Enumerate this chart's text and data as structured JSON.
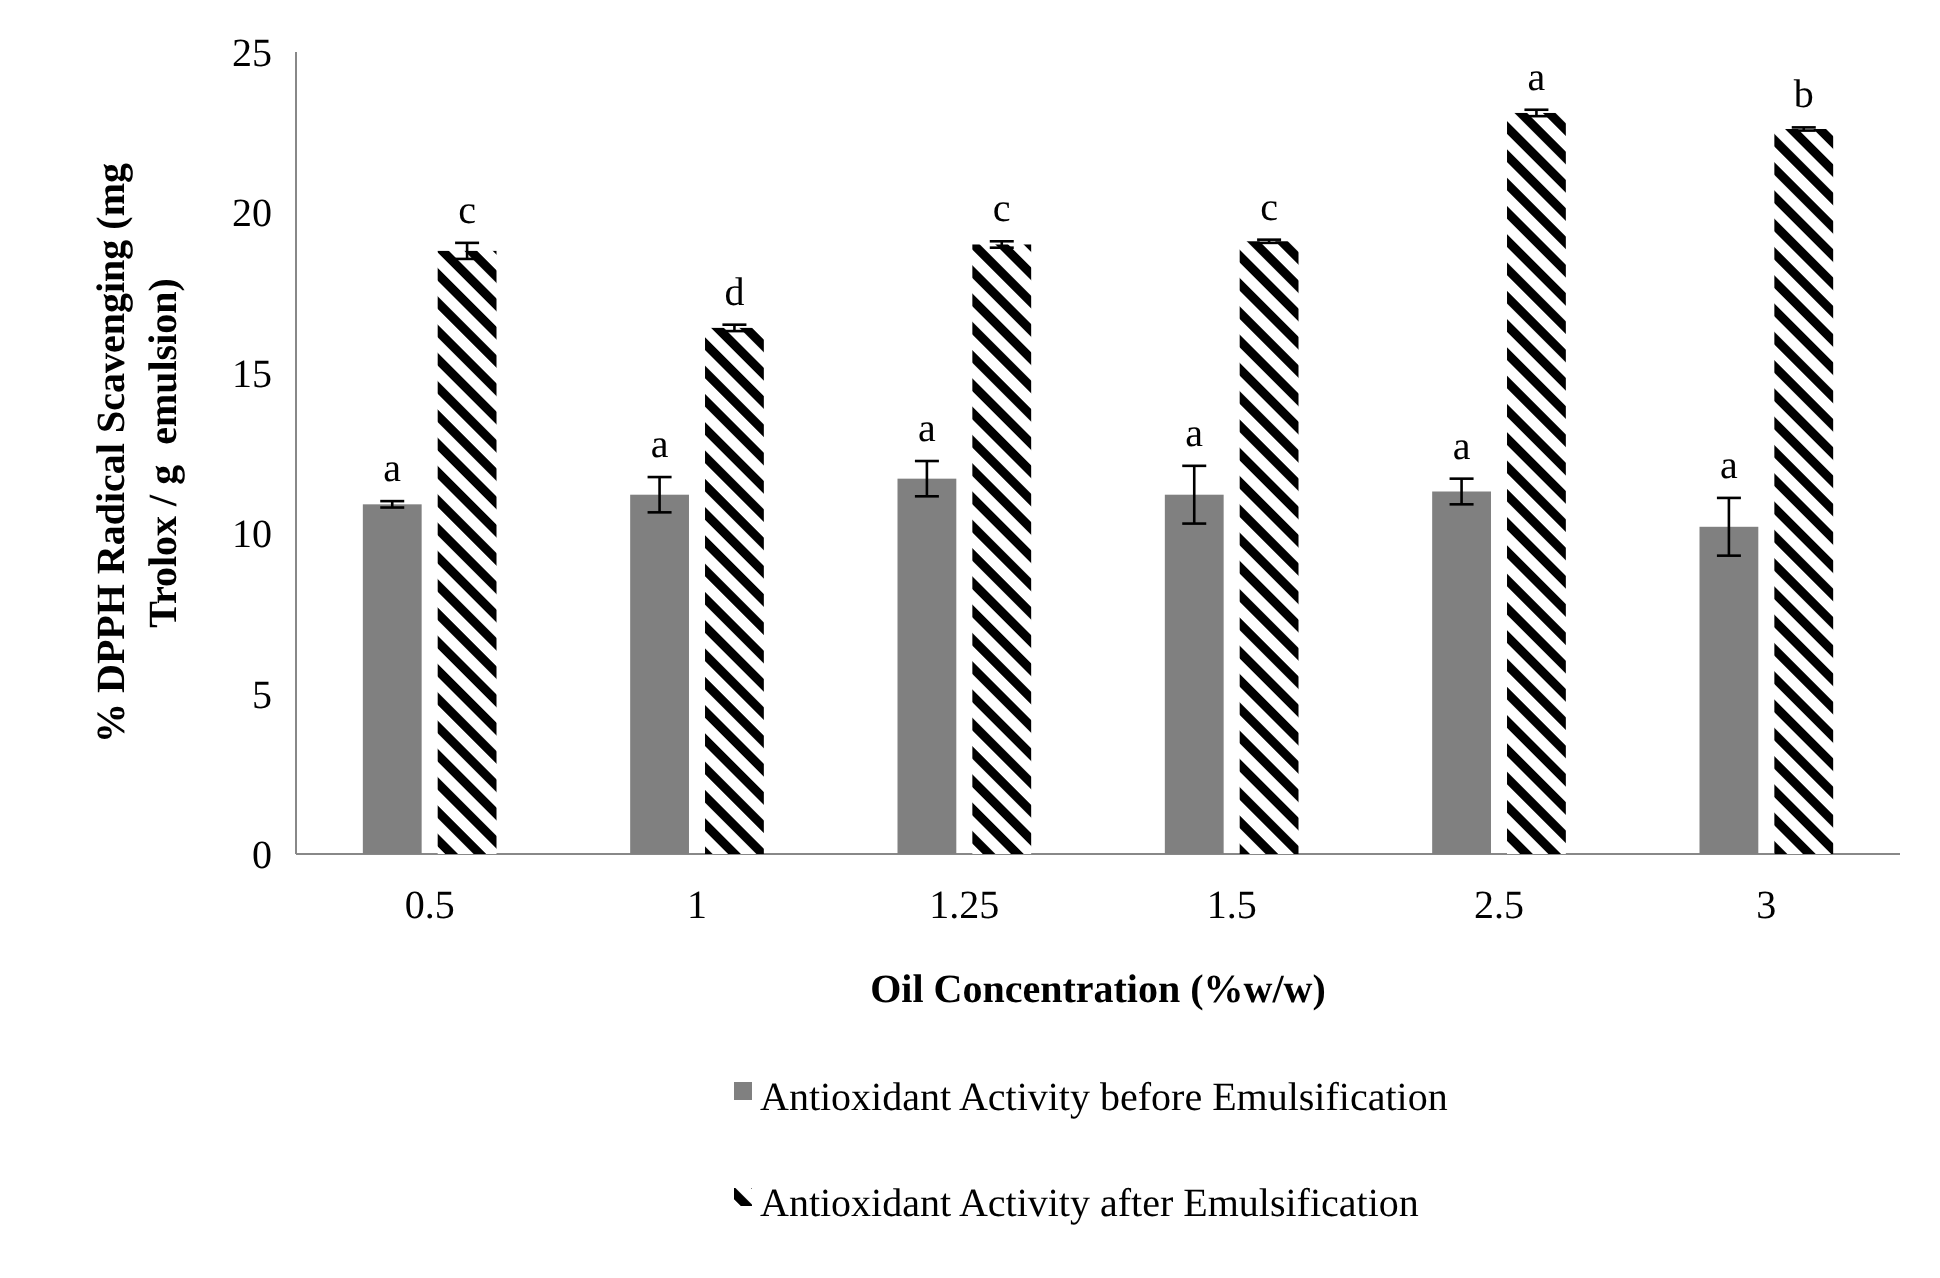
{
  "chart_data": {
    "type": "bar",
    "xlabel": "Oil Concentration (%w/w)",
    "ylabel": "% DPPH Radical Scavenging (mg Trolox / g  emulsion)",
    "categories": [
      "0.5",
      "1",
      "1.25",
      "1.5",
      "2.5",
      "3"
    ],
    "series": [
      {
        "name": "Antioxidant Activity before Emulsification",
        "color": "#808080",
        "values": [
          10.9,
          11.2,
          11.7,
          11.2,
          11.3,
          10.2
        ],
        "errors": [
          0.1,
          0.55,
          0.55,
          0.9,
          0.4,
          0.9
        ]
      },
      {
        "name": "Antioxidant Activity after Emulsification",
        "color": "#000000",
        "values": [
          18.8,
          16.4,
          19.0,
          19.1,
          23.1,
          22.6
        ],
        "errors": [
          0.25,
          0.1,
          0.1,
          0.05,
          0.1,
          0.05
        ]
      }
    ],
    "ylim": [
      0,
      25
    ],
    "yticks": [
      0,
      5,
      10,
      15,
      20,
      25
    ],
    "legend": "bottom",
    "annotations": [
      {
        "text": "a",
        "x": "0.5",
        "y": 10.9
      },
      {
        "text": "c",
        "x": "0.5",
        "y": 18.8
      },
      {
        "text": "a",
        "x": "1",
        "y": 11.2
      },
      {
        "text": "d",
        "x": "1",
        "y": 16.4
      },
      {
        "text": "a",
        "x": "1.25",
        "y": 11.7
      },
      {
        "text": "c",
        "x": "1.25",
        "y": 19.0
      },
      {
        "text": "a",
        "x": "1.5",
        "y": 11.2
      },
      {
        "text": "c",
        "x": "1.5",
        "y": 19.1
      },
      {
        "text": "a",
        "x": "2.5",
        "y": 11.3
      },
      {
        "text": "a",
        "x": "2.5",
        "y": 23.1
      },
      {
        "text": "a",
        "x": "3",
        "y": 10.2
      },
      {
        "text": "b",
        "x": "3",
        "y": 22.6
      }
    ]
  }
}
